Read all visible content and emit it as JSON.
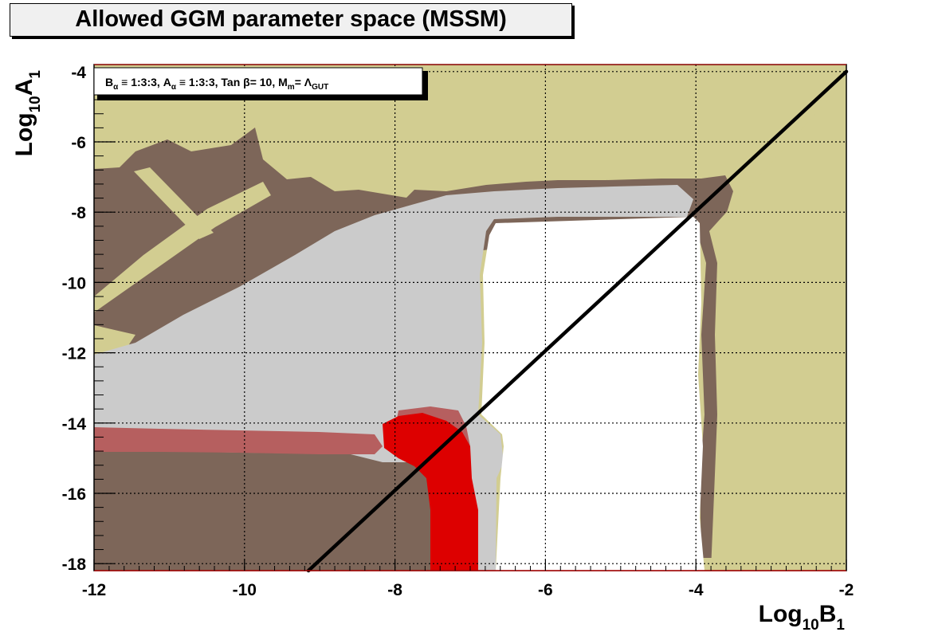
{
  "chart_data": {
    "type": "heatmap",
    "title": "Allowed GGM parameter space (MSSM)",
    "info_box": {
      "B": "B",
      "alpha": "α",
      "B_ratio": " ≡ 1:3:3, ",
      "A": "A",
      "A_ratio": " ≡ 1:3:3, ",
      "tan": "Tan ",
      "beta": "β",
      "tan_val": "= 10, ",
      "M": "M",
      "m": "m",
      "eq": "= ",
      "Lambda": "Λ",
      "GUT": "GUT"
    },
    "xlabel": {
      "pre": "Log",
      "sub": "10",
      "main": "B",
      "idx": "1"
    },
    "ylabel": {
      "pre": "Log",
      "sub": "10",
      "main": "A",
      "idx": "1"
    },
    "xlim": [
      -12,
      -2
    ],
    "ylim": [
      -18.2,
      -3.8
    ],
    "xticks": [
      "-12",
      "-10",
      "-8",
      "-6",
      "-4",
      "-2"
    ],
    "yticks": [
      "-4",
      "-6",
      "-8",
      "-10",
      "-12",
      "-14",
      "-16",
      "-18"
    ],
    "grid": true,
    "colors": {
      "khaki": "#d2cd91",
      "brown": "#7d6659",
      "gray": "#cbcbcb",
      "pink": "#b65f5f",
      "red": "#dd0000",
      "white": "#ffffff"
    },
    "line": {
      "x": [
        -9.15,
        -2.0
      ],
      "y": [
        -18.2,
        -4.0
      ],
      "color": "#000000"
    }
  }
}
